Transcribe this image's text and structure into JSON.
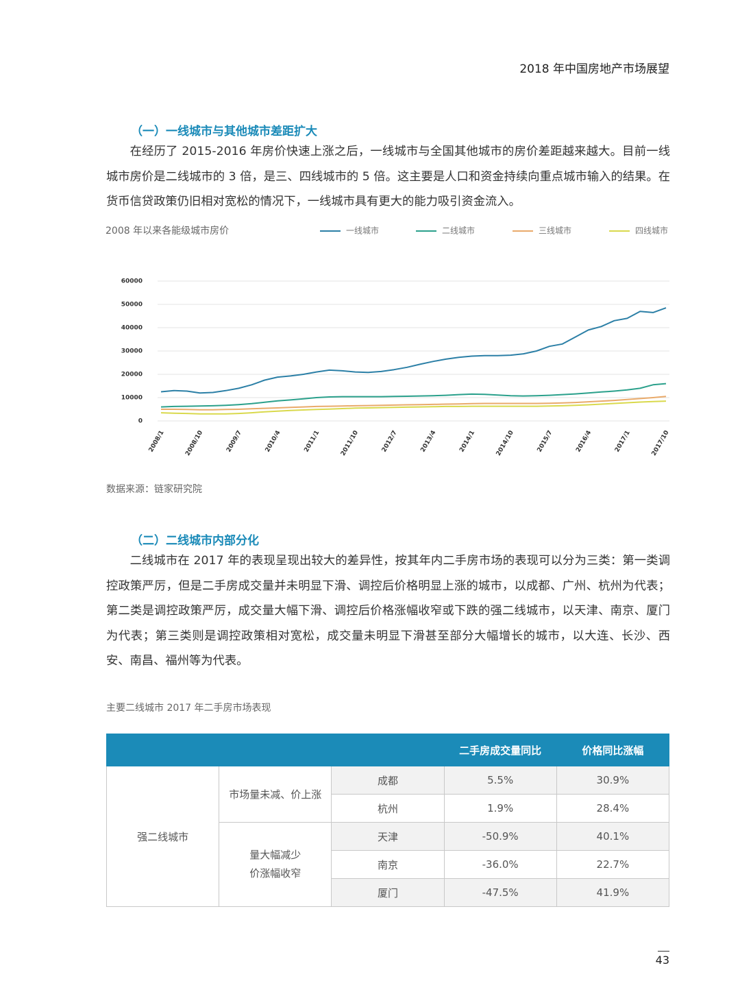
{
  "header": {
    "title": "2018 年中国房地产市场展望"
  },
  "sections": [
    {
      "heading": "（一）一线城市与其他城市差距扩大",
      "paragraph": "在经历了 2015-2016 年房价快速上涨之后，一线城市与全国其他城市的房价差距越来越大。目前一线城市房价是二线城市的 3 倍，是三、四线城市的 5 倍。这主要是人口和资金持续向重点城市输入的结果。在货币信贷政策仍旧相对宽松的情况下，一线城市具有更大的能力吸引资金流入。"
    },
    {
      "heading": "（二）二线城市内部分化",
      "paragraph": "二线城市在 2017 年的表现呈现出较大的差异性，按其年内二手房市场的表现可以分为三类：第一类调控政策严厉，但是二手房成交量并未明显下滑、调控后价格明显上涨的城市，以成都、广州、杭州为代表；第二类是调控政策严厉，成交量大幅下滑、调控后价格涨幅收窄或下跌的强二线城市，以天津、南京、厦门为代表；第三类则是调控政策相对宽松，成交量未明显下滑甚至部分大幅增长的城市，以大连、长沙、西安、南昌、福州等为代表。"
    }
  ],
  "chart_data": {
    "type": "line",
    "title": "2008 年以来各能级城市房价",
    "categories": [
      "2008/1",
      null,
      null,
      "2008/10",
      null,
      null,
      "2009/7",
      null,
      null,
      "2010/4",
      null,
      null,
      "2011/1",
      null,
      null,
      "2011/10",
      null,
      null,
      "2012/7",
      null,
      null,
      "2013/4",
      null,
      null,
      "2014/1",
      null,
      null,
      "2014/10",
      null,
      null,
      "2015/7",
      null,
      null,
      "2016/4",
      null,
      null,
      "2017/1",
      null,
      null,
      "2017/10"
    ],
    "series": [
      {
        "name": "一线城市",
        "color": "#2b7fa6",
        "values": [
          12500,
          13000,
          12800,
          12000,
          12200,
          13000,
          14000,
          15500,
          17500,
          18800,
          19300,
          20000,
          21000,
          21800,
          21500,
          21000,
          20800,
          21200,
          22000,
          23000,
          24300,
          25500,
          26500,
          27300,
          27800,
          28000,
          28000,
          28200,
          28800,
          30000,
          32000,
          33000,
          36000,
          39000,
          40500,
          43000,
          44000,
          47000,
          46500,
          48500
        ]
      },
      {
        "name": "二线城市",
        "color": "#2aa08b",
        "values": [
          6000,
          6200,
          6300,
          6400,
          6500,
          6700,
          7000,
          7400,
          8000,
          8600,
          9000,
          9500,
          10000,
          10300,
          10400,
          10400,
          10400,
          10400,
          10500,
          10600,
          10700,
          10800,
          11000,
          11300,
          11500,
          11400,
          11100,
          10800,
          10700,
          10800,
          11000,
          11300,
          11600,
          12000,
          12400,
          12800,
          13300,
          14000,
          15500,
          16000
        ]
      },
      {
        "name": "三线城市",
        "color": "#e9aa6a",
        "values": [
          5000,
          5000,
          4900,
          4800,
          4800,
          4900,
          5000,
          5200,
          5400,
          5600,
          5800,
          6000,
          6200,
          6300,
          6400,
          6500,
          6600,
          6700,
          6800,
          6900,
          7000,
          7100,
          7200,
          7300,
          7400,
          7500,
          7500,
          7500,
          7500,
          7500,
          7600,
          7700,
          7900,
          8200,
          8500,
          8800,
          9200,
          9600,
          10000,
          10500
        ]
      },
      {
        "name": "四线城市",
        "color": "#d9d94c",
        "values": [
          3500,
          3300,
          3200,
          3000,
          3000,
          3000,
          3200,
          3500,
          3900,
          4200,
          4500,
          4700,
          4900,
          5100,
          5300,
          5500,
          5600,
          5700,
          5800,
          5900,
          6000,
          6100,
          6200,
          6200,
          6300,
          6300,
          6300,
          6300,
          6300,
          6300,
          6400,
          6500,
          6700,
          6900,
          7200,
          7500,
          7800,
          8100,
          8300,
          8500
        ]
      }
    ],
    "ylim": [
      0,
      60000
    ],
    "yticks": [
      0,
      10000,
      20000,
      30000,
      40000,
      50000,
      60000
    ],
    "grid": true,
    "legend": "top"
  },
  "source": "数据来源：链家研究院",
  "table": {
    "title": "主要二线城市 2017 年二手房市场表现",
    "header": [
      "二手房成交量同比",
      "价格同比涨幅"
    ],
    "group": "强二线城市",
    "subgroups": [
      {
        "label_lines": [
          "市场量未减、价上涨"
        ],
        "rows": [
          [
            "成都",
            "5.5%",
            "30.9%"
          ],
          [
            "杭州",
            "1.9%",
            "28.4%"
          ]
        ]
      },
      {
        "label_lines": [
          "量大幅减少",
          "价涨幅收窄"
        ],
        "rows": [
          [
            "天津",
            "-50.9%",
            "40.1%"
          ],
          [
            "南京",
            "-36.0%",
            "22.7%"
          ],
          [
            "厦门",
            "-47.5%",
            "41.9%"
          ]
        ]
      }
    ]
  },
  "page_number": "43"
}
